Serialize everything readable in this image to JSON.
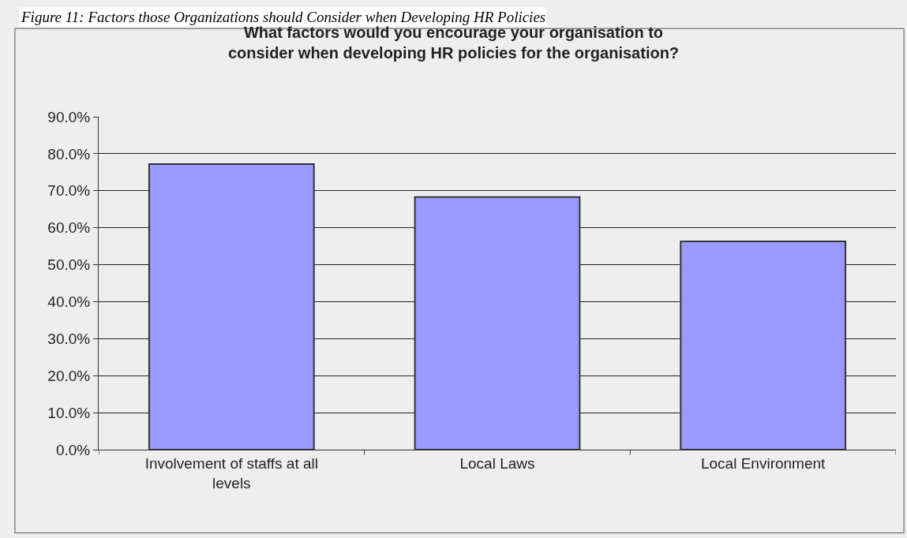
{
  "chart_data": {
    "type": "bar",
    "title": "What factors would you encourage your organisation to consider when developing HR policies for the organisation?",
    "annotations": [
      "Figure 11: Factors those Organizations should Consider when Developing HR Policies"
    ],
    "categories": [
      "Involvement of staffs at all levels",
      "Local Laws",
      "Local Environment"
    ],
    "values": [
      77.2,
      68.3,
      56.3
    ],
    "color": "#9999ff",
    "ylim": [
      0,
      90
    ],
    "yticks": [
      {
        "value": 0,
        "label": "0.0%"
      },
      {
        "value": 10,
        "label": "10.0%"
      },
      {
        "value": 20,
        "label": "20.0%"
      },
      {
        "value": 30,
        "label": "30.0%"
      },
      {
        "value": 40,
        "label": "40.0%"
      },
      {
        "value": 50,
        "label": "50.0%"
      },
      {
        "value": 60,
        "label": "60.0%"
      },
      {
        "value": 70,
        "label": "70.0%"
      },
      {
        "value": 80,
        "label": "80.0%"
      },
      {
        "value": 90,
        "label": "90.0%"
      }
    ],
    "grid": "y"
  }
}
